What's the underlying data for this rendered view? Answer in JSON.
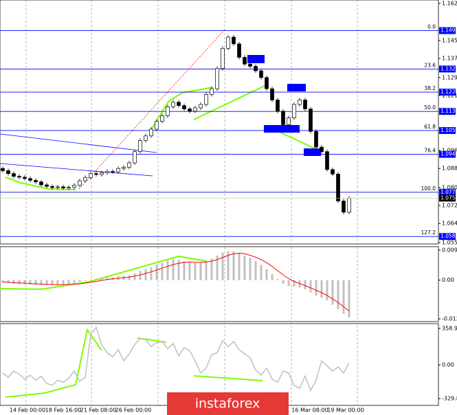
{
  "chart_data": [
    {
      "type": "candlestick",
      "categories": [
        "14 Feb 00:00",
        "18 Feb 16:00",
        "21 Feb 08:00",
        "26 Feb 00:00",
        "16 Mar 08:00",
        "19 Mar 00:00"
      ],
      "open": [
        1.0885,
        1.0875,
        1.0862,
        1.085,
        1.0846,
        1.084,
        1.0832,
        1.0825,
        1.0812,
        1.0805,
        1.08,
        1.0803,
        1.0798,
        1.0801,
        1.081,
        1.083,
        1.0845,
        1.0862,
        1.0858,
        1.0866,
        1.0872,
        1.087,
        1.0885,
        1.089,
        1.091,
        1.096,
        1.101,
        1.103,
        1.106,
        1.1095,
        1.112,
        1.116,
        1.118,
        1.1165,
        1.115,
        1.114,
        1.1155,
        1.117,
        1.1215,
        1.124,
        1.133,
        1.142,
        1.147,
        1.144,
        1.138,
        1.135,
        1.134,
        1.132,
        1.129,
        1.124,
        1.119,
        1.114,
        1.108,
        1.111,
        1.117,
        1.119,
        1.115,
        1.105,
        1.098,
        1.096,
        1.088,
        1.086,
        1.074,
        1.069
      ],
      "close": [
        1.0875,
        1.0862,
        1.085,
        1.0846,
        1.084,
        1.0832,
        1.0825,
        1.0812,
        1.0805,
        1.08,
        1.0803,
        1.0798,
        1.0801,
        1.081,
        1.083,
        1.0845,
        1.0862,
        1.0858,
        1.0866,
        1.0872,
        1.087,
        1.0885,
        1.089,
        1.091,
        1.096,
        1.101,
        1.103,
        1.106,
        1.1095,
        1.112,
        1.116,
        1.118,
        1.1165,
        1.115,
        1.114,
        1.1155,
        1.117,
        1.1215,
        1.124,
        1.133,
        1.142,
        1.147,
        1.144,
        1.138,
        1.135,
        1.134,
        1.132,
        1.129,
        1.124,
        1.119,
        1.114,
        1.108,
        1.111,
        1.117,
        1.119,
        1.115,
        1.105,
        1.098,
        1.096,
        1.088,
        1.086,
        1.074,
        1.069,
        1.0753
      ],
      "up_color": "#ffffff",
      "down_color": "#000000",
      "ylim": [
        1.0555,
        1.162
      ],
      "yticks": [
        {
          "value": 1.162,
          "label": "1.1620"
        },
        1.1455,
        1.1375,
        {
          "value": 1.129,
          "label": "1.1290"
        },
        {
          "value": 1.121,
          "label": "1.1210"
        },
        1.0965,
        1.0885,
        {
          "value": 1.08,
          "label": "1.0800"
        },
        {
          "value": 1.072,
          "label": "1.0720"
        },
        {
          "value": 1.064,
          "label": "1.0640"
        },
        1.0555
      ],
      "levels": [
        {
          "name": "0.0",
          "value": 1.1499
        },
        {
          "name": "23.6",
          "value": 1.1328
        },
        {
          "name": "38.2",
          "value": 1.1225
        },
        {
          "name": "50.0",
          "value": 1.1139
        },
        {
          "name": "61.8",
          "value": 1.1054
        },
        {
          "name": "76.4",
          "value": 1.0948
        },
        {
          "name": "100.0",
          "value": 1.0779
        },
        {
          "name": "127.2",
          "value": 1.0582
        }
      ],
      "level_color": "#0000ff",
      "last_price": 1.0753
    },
    {
      "type": "bar",
      "values": [
        -0.0008,
        -0.001,
        -0.0012,
        -0.0013,
        -0.0014,
        -0.0015,
        -0.0015,
        -0.0016,
        -0.0016,
        -0.0016,
        -0.0015,
        -0.0014,
        -0.0013,
        -0.001,
        -0.0006,
        -0.0002,
        0.0002,
        0.0005,
        0.0007,
        0.0009,
        0.001,
        0.0012,
        0.0014,
        0.0016,
        0.0022,
        0.003,
        0.0036,
        0.0042,
        0.005,
        0.0056,
        0.0064,
        0.0068,
        0.0066,
        0.0062,
        0.0058,
        0.0056,
        0.0058,
        0.0064,
        0.007,
        0.008,
        0.009,
        0.0095,
        0.0094,
        0.0088,
        0.008,
        0.0072,
        0.0062,
        0.005,
        0.0036,
        0.002,
        0.0004,
        -0.0012,
        -0.002,
        -0.0022,
        -0.0024,
        -0.003,
        -0.004,
        -0.005,
        -0.0058,
        -0.0066,
        -0.008,
        -0.0095,
        -0.011,
        -0.0122
      ],
      "signal": [
        -0.0006,
        -0.0007,
        -0.0008,
        -0.0009,
        -0.001,
        -0.0011,
        -0.0012,
        -0.0013,
        -0.0014,
        -0.0014,
        -0.0015,
        -0.0015,
        -0.0014,
        -0.0013,
        -0.0012,
        -0.001,
        -0.0007,
        -0.0004,
        -0.0001,
        0.0002,
        0.0004,
        0.0006,
        0.0008,
        0.001,
        0.0013,
        0.0017,
        0.0022,
        0.0027,
        0.0033,
        0.0039,
        0.0045,
        0.0051,
        0.0055,
        0.0058,
        0.0059,
        0.0058,
        0.0058,
        0.0059,
        0.0062,
        0.0067,
        0.0074,
        0.0081,
        0.0086,
        0.0088,
        0.0086,
        0.0081,
        0.0075,
        0.0067,
        0.0057,
        0.0045,
        0.0031,
        0.0017,
        0.0005,
        -0.0004,
        -0.0011,
        -0.0018,
        -0.0025,
        -0.0033,
        -0.0041,
        -0.005,
        -0.0061,
        -0.0073,
        -0.0087,
        -0.0101
      ],
      "color": "#c0c0c0",
      "signal_color": "#ff0000",
      "ylim": [
        -0.01263,
        0.00981
      ],
      "yticks": [
        0.00981,
        {
          "value": 0,
          "label": "0.00"
        },
        -0.01263
      ]
    },
    {
      "type": "line",
      "values": [
        -80,
        -120,
        -60,
        -90,
        -140,
        -100,
        -150,
        -110,
        -180,
        -200,
        -150,
        -170,
        -130,
        -60,
        -160,
        -120,
        300,
        370,
        200,
        120,
        80,
        150,
        40,
        110,
        200,
        260,
        250,
        180,
        220,
        230,
        160,
        210,
        90,
        170,
        140,
        40,
        -80,
        -30,
        100,
        120,
        240,
        180,
        230,
        150,
        110,
        70,
        -50,
        -100,
        -30,
        -140,
        -170,
        -60,
        -80,
        -200,
        -230,
        -110,
        -250,
        -150,
        40,
        -10,
        -60,
        -20,
        -80,
        20
      ],
      "color": "#c0c0c0",
      "ylim": [
        -329.8126,
        358.9934
      ],
      "yticks": [
        358.9934,
        {
          "value": 0,
          "label": "0.00"
        },
        -329.8126
      ]
    }
  ],
  "watermark": "instaforex"
}
